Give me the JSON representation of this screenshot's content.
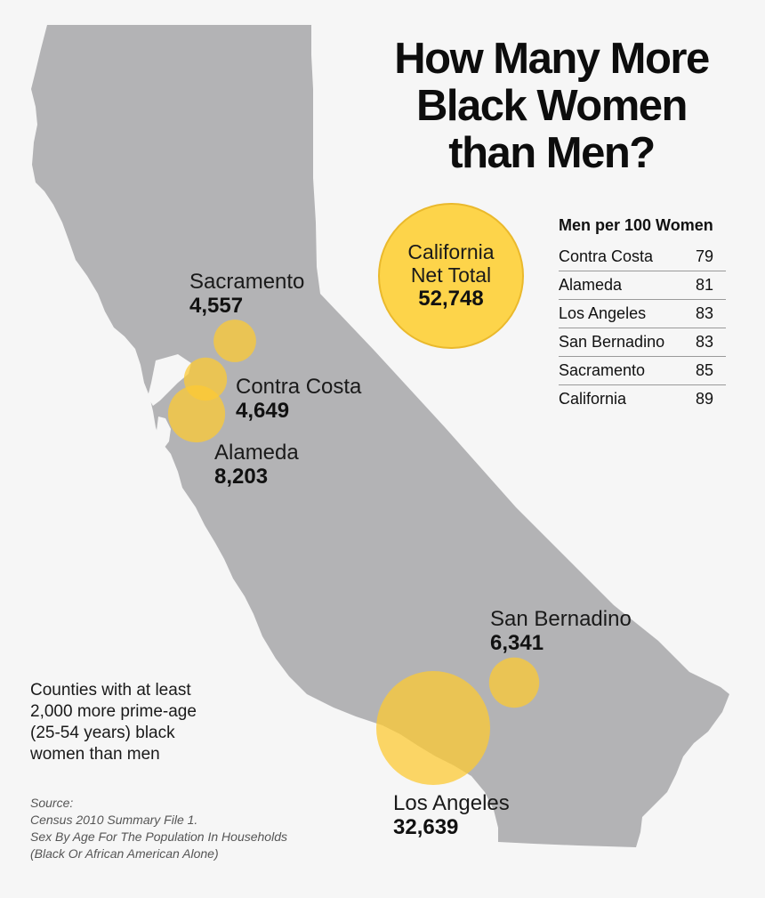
{
  "title": {
    "line1": "How Many More",
    "line2": "Black Women",
    "line3": "than Men?"
  },
  "colors": {
    "state": "#b3b3b5",
    "bubble": "#fcc934",
    "background": "#f6f6f6"
  },
  "total": {
    "line1": "California",
    "line2": "Net Total",
    "value": "52,748"
  },
  "counties": [
    {
      "name": "Sacramento",
      "value": "4,557",
      "count": 4557
    },
    {
      "name": "Contra Costa",
      "value": "4,649",
      "count": 4649
    },
    {
      "name": "Alameda",
      "value": "8,203",
      "count": 8203
    },
    {
      "name": "San Bernadino",
      "value": "6,341",
      "count": 6341
    },
    {
      "name": "Los Angeles",
      "value": "32,639",
      "count": 32639
    }
  ],
  "table": {
    "title": "Men per 100 Women",
    "rows": [
      {
        "name": "Contra Costa",
        "value": "79"
      },
      {
        "name": "Alameda",
        "value": "81"
      },
      {
        "name": "Los Angeles",
        "value": "83"
      },
      {
        "name": "San Bernadino",
        "value": "83"
      },
      {
        "name": "Sacramento",
        "value": "85"
      },
      {
        "name": "California",
        "value": "89"
      }
    ]
  },
  "legend": "Counties with at least 2,000 more prime-age (25-54 years) black women than men",
  "source": {
    "line1": "Source:",
    "line2": "Census 2010 Summary File 1.",
    "line3": "Sex By Age For The Population In Households",
    "line4": "(Black Or African American Alone)"
  }
}
